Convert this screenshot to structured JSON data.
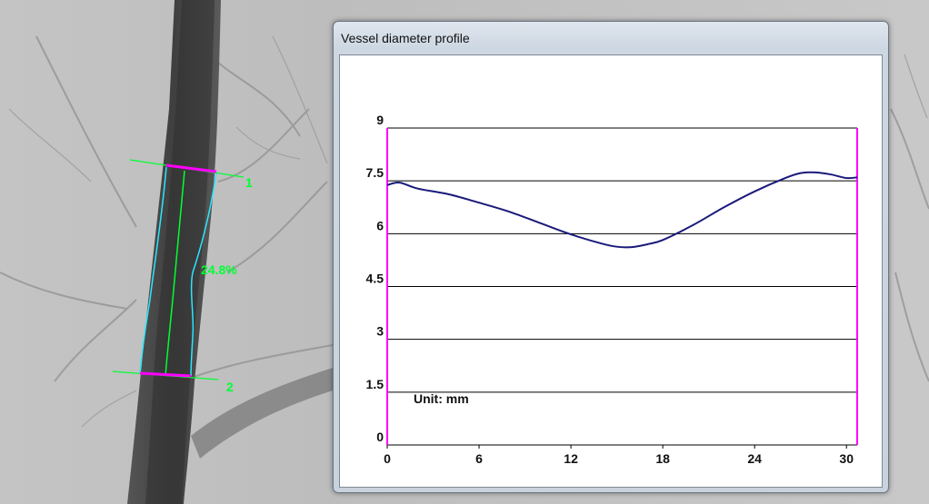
{
  "window": {
    "title": "Vessel diameter profile"
  },
  "angio": {
    "stenosis_label": "24.8%",
    "marker_1": "1",
    "marker_2": "2",
    "overlay_color": "#00ff33",
    "edge_color": "#2ae6ff",
    "marker_color": "#ff00ff"
  },
  "chart_data": {
    "type": "line",
    "unit_label": "Unit: mm",
    "xlim": [
      0,
      30.7
    ],
    "ylim": [
      0,
      9
    ],
    "x_ticks": [
      0,
      6,
      12,
      18,
      24,
      30
    ],
    "y_ticks": [
      0,
      1.5,
      3,
      4.5,
      6,
      7.5,
      9
    ],
    "grid": "horizontal",
    "boundary_color": "#ff00ff",
    "line_color": "#1a1a7a",
    "series": [
      {
        "x": [
          0,
          0.8,
          2,
          4,
          6,
          8,
          10,
          12,
          14,
          15,
          16,
          17,
          18,
          20,
          22,
          24,
          26,
          27,
          28,
          29,
          30,
          30.7
        ],
        "y": [
          7.38,
          7.45,
          7.28,
          7.12,
          6.88,
          6.62,
          6.3,
          5.98,
          5.72,
          5.63,
          5.62,
          5.7,
          5.82,
          6.25,
          6.75,
          7.2,
          7.58,
          7.72,
          7.74,
          7.68,
          7.58,
          7.6
        ]
      }
    ]
  }
}
